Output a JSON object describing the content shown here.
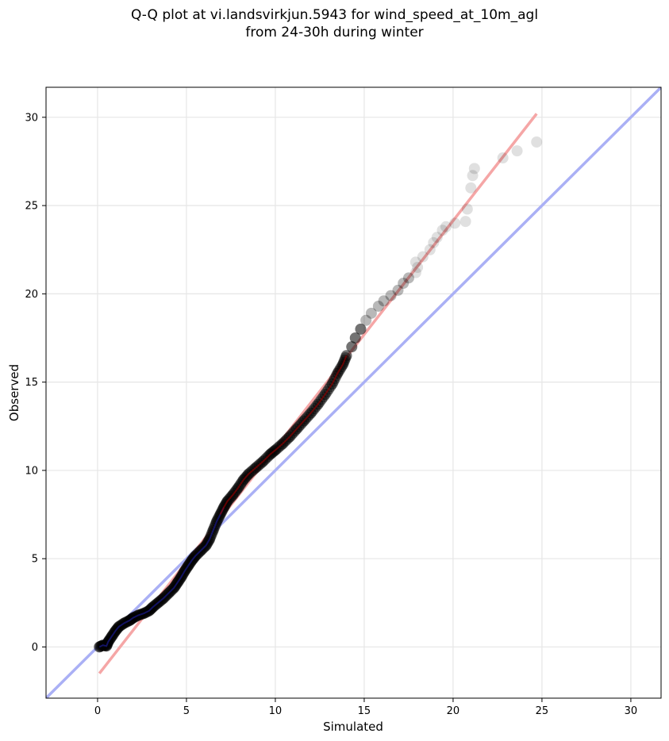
{
  "chart_data": {
    "type": "scatter",
    "title_lines": [
      "Q-Q plot at vi.landsvirkjun.5943 for wind_speed_at_10m_agl",
      "from 24-30h during winter"
    ],
    "xlabel": "Simulated",
    "ylabel": "Observed",
    "xlim": [
      -2.9,
      31.7
    ],
    "ylim": [
      -2.9,
      31.7
    ],
    "xticks": [
      0,
      5,
      10,
      15,
      20,
      25,
      30
    ],
    "yticks": [
      0,
      5,
      10,
      15,
      20,
      25,
      30
    ],
    "grid": true,
    "legend": "none",
    "colors": {
      "points": "#000000",
      "identity_line": "#aab0f5",
      "fit_line": "#f5a6a6",
      "grid": "#e6e6e6",
      "dense_overlay_low": "#1a1a8c",
      "dense_overlay_high": "#8b0000"
    },
    "identity_line": {
      "x": [
        -2.9,
        31.7
      ],
      "y": [
        -2.9,
        31.7
      ]
    },
    "fit_line": {
      "x": [
        0.1,
        24.7
      ],
      "y": [
        -1.5,
        30.2
      ]
    },
    "points": [
      [
        0.1,
        0.0
      ],
      [
        0.3,
        0.1
      ],
      [
        0.5,
        0.05
      ],
      [
        0.6,
        0.3
      ],
      [
        0.8,
        0.6
      ],
      [
        1.0,
        0.9
      ],
      [
        1.2,
        1.15
      ],
      [
        1.5,
        1.35
      ],
      [
        1.8,
        1.5
      ],
      [
        2.0,
        1.65
      ],
      [
        2.3,
        1.8
      ],
      [
        2.6,
        1.9
      ],
      [
        2.9,
        2.05
      ],
      [
        3.1,
        2.25
      ],
      [
        3.4,
        2.5
      ],
      [
        3.7,
        2.75
      ],
      [
        4.0,
        3.05
      ],
      [
        4.3,
        3.35
      ],
      [
        4.5,
        3.65
      ],
      [
        4.7,
        3.95
      ],
      [
        4.9,
        4.3
      ],
      [
        5.1,
        4.6
      ],
      [
        5.3,
        4.9
      ],
      [
        5.5,
        5.15
      ],
      [
        5.8,
        5.45
      ],
      [
        6.1,
        5.75
      ],
      [
        6.3,
        6.1
      ],
      [
        6.5,
        6.6
      ],
      [
        6.7,
        7.1
      ],
      [
        6.9,
        7.5
      ],
      [
        7.1,
        7.9
      ],
      [
        7.3,
        8.25
      ],
      [
        7.6,
        8.6
      ],
      [
        7.9,
        9.0
      ],
      [
        8.2,
        9.45
      ],
      [
        8.5,
        9.8
      ],
      [
        8.9,
        10.15
      ],
      [
        9.3,
        10.5
      ],
      [
        9.7,
        10.9
      ],
      [
        10.0,
        11.15
      ],
      [
        10.4,
        11.5
      ],
      [
        10.8,
        11.9
      ],
      [
        11.2,
        12.35
      ],
      [
        11.6,
        12.8
      ],
      [
        12.0,
        13.25
      ],
      [
        12.4,
        13.75
      ],
      [
        12.8,
        14.3
      ],
      [
        13.2,
        14.9
      ],
      [
        13.5,
        15.5
      ],
      [
        13.8,
        16.0
      ],
      [
        14.0,
        16.5
      ],
      [
        14.3,
        17.0
      ],
      [
        14.5,
        17.5
      ],
      [
        14.8,
        18.0
      ],
      [
        15.1,
        18.5
      ],
      [
        15.4,
        18.9
      ],
      [
        15.8,
        19.3
      ],
      [
        16.1,
        19.6
      ],
      [
        16.5,
        19.9
      ],
      [
        16.9,
        20.2
      ],
      [
        17.2,
        20.6
      ],
      [
        17.5,
        20.9
      ],
      [
        17.9,
        21.2
      ],
      [
        18.0,
        21.5
      ],
      [
        17.9,
        21.8
      ],
      [
        18.3,
        22.1
      ],
      [
        18.7,
        22.5
      ],
      [
        18.9,
        22.9
      ],
      [
        19.1,
        23.2
      ],
      [
        19.4,
        23.6
      ],
      [
        19.6,
        23.8
      ],
      [
        20.1,
        24.0
      ],
      [
        20.7,
        24.1
      ],
      [
        20.8,
        24.8
      ],
      [
        21.0,
        26.0
      ],
      [
        21.1,
        26.7
      ],
      [
        21.2,
        27.1
      ],
      [
        22.8,
        27.7
      ],
      [
        23.6,
        28.1
      ],
      [
        24.7,
        28.6
      ]
    ]
  }
}
